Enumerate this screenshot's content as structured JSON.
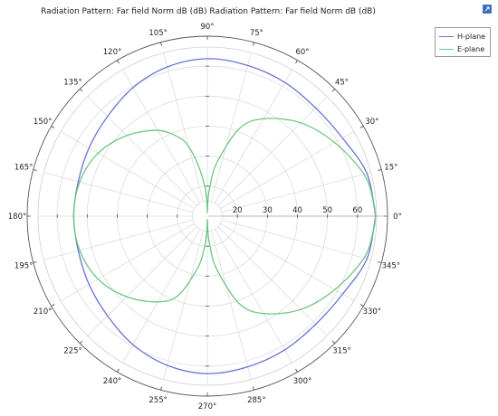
{
  "title": "Radiation Pattern: Far field Norm dB (dB)  Radiation Pattern: Far field Norm dB (dB)",
  "corner_icon": "export-icon",
  "colors": {
    "h_plane": "#6b74d6",
    "e_plane": "#6fc57f",
    "grid": "#dcdcdc",
    "axis": "#333333"
  },
  "chart_data": {
    "type": "polar",
    "title": "Radiation Pattern: Far field Norm dB (dB)  Radiation Pattern: Far field Norm dB (dB)",
    "radial_range": [
      10,
      70
    ],
    "radial_ticks": [
      20,
      30,
      40,
      50,
      60
    ],
    "angle_ticks": [
      "0°",
      "15°",
      "30°",
      "45°",
      "60°",
      "75°",
      "90°",
      "105°",
      "120°",
      "135°",
      "150°",
      "165°",
      "180°",
      "195°",
      "210°",
      "225°",
      "240°",
      "255°",
      "270°",
      "285°",
      "300°",
      "315°",
      "330°",
      "345°"
    ],
    "legend_position": "top-right",
    "grid": true,
    "series": [
      {
        "name": "H-plane",
        "color": "#6b74d6",
        "angles_deg": [
          0,
          15,
          30,
          45,
          60,
          75,
          90,
          105,
          120,
          135,
          150,
          165,
          180,
          195,
          210,
          225,
          240,
          255,
          270,
          285,
          300,
          315,
          330,
          345,
          360
        ],
        "values": [
          66,
          65,
          62,
          61,
          61.5,
          62,
          62.5,
          61.5,
          59.5,
          57,
          55.5,
          54.5,
          54.5,
          54.5,
          55.5,
          57,
          59.5,
          61.5,
          62.5,
          62,
          61.5,
          61,
          62,
          65,
          66
        ]
      },
      {
        "name": "E-plane",
        "color": "#6fc57f",
        "angles_deg": [
          0,
          5,
          15,
          30,
          45,
          60,
          70,
          80,
          85,
          88,
          90,
          92,
          95,
          100,
          105,
          110,
          120,
          135,
          150,
          165,
          180,
          195,
          210,
          225,
          240,
          250,
          260,
          265,
          268,
          270,
          272,
          275,
          280,
          290,
          300,
          315,
          330,
          345,
          355,
          360
        ],
        "values": [
          66,
          65.5,
          64,
          59,
          54,
          47.5,
          41,
          28,
          20,
          15,
          11,
          15,
          20,
          27,
          34,
          38,
          43,
          48,
          52,
          54,
          54.5,
          54,
          52,
          48,
          43,
          38,
          27,
          20,
          15,
          11,
          15,
          20,
          28,
          41,
          47.5,
          54,
          59,
          64,
          65.5,
          66
        ]
      }
    ]
  }
}
